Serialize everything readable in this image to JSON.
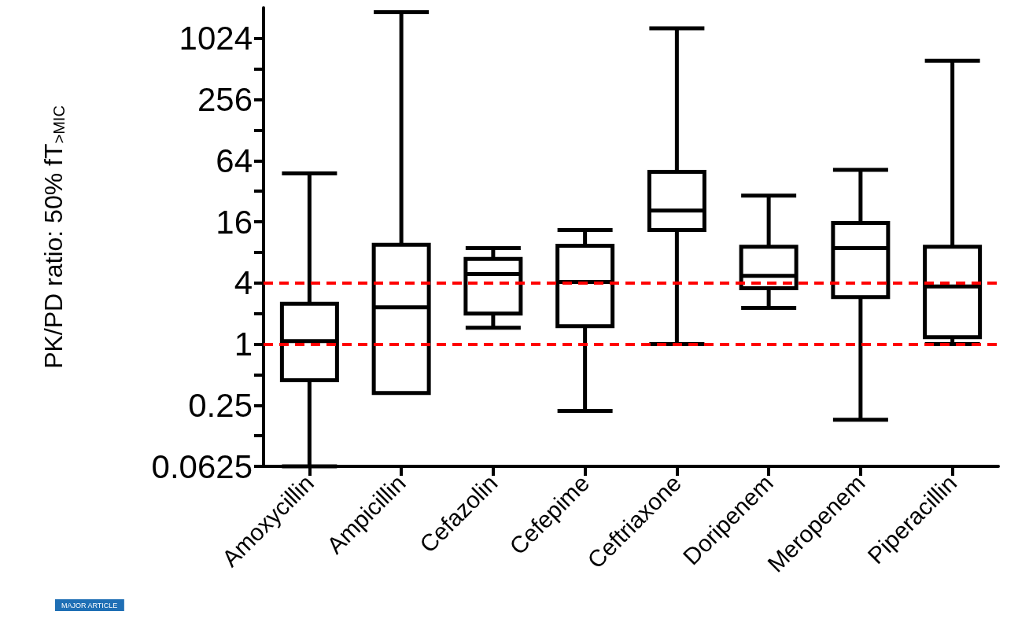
{
  "chart_data": {
    "type": "box",
    "ylabel": "PK/PD ratio: 50% fT$_{>MIC}$",
    "categories": [
      "Amoxycillin",
      "Ampicillin",
      "Cefazolin",
      "Cefepime",
      "Ceftriaxone",
      "Doripenem",
      "Meropenem",
      "Piperacillin"
    ],
    "log": "y",
    "ylim": [
      0.0625,
      2048
    ],
    "yticks": [
      0.0625,
      {
        "value": 0.125,
        "label": null
      },
      0.25,
      {
        "value": 0.5,
        "label": null
      },
      1,
      {
        "value": 2,
        "label": null
      },
      4,
      {
        "value": 8,
        "label": null
      },
      16,
      {
        "value": 32,
        "label": null
      },
      64,
      {
        "value": 128,
        "label": null
      },
      256,
      {
        "value": 512,
        "label": null
      },
      1024
    ],
    "color": "#000000",
    "boxes": [
      {
        "low": 0.0625,
        "q1": 0.44,
        "median": 1.07,
        "q3": 2.5,
        "high": 48
      },
      {
        "low": 0.33,
        "q1": 0.33,
        "median": 2.3,
        "q3": 9.5,
        "high": 1860
      },
      {
        "low": 1.45,
        "q1": 2.0,
        "median": 4.9,
        "q3": 6.9,
        "high": 8.8
      },
      {
        "low": 0.22,
        "q1": 1.5,
        "median": 4.1,
        "q3": 9.3,
        "high": 13.3
      },
      {
        "low": 1,
        "q1": 13.3,
        "median": 20.7,
        "q3": 49.7,
        "high": 1290
      },
      {
        "low": 2.27,
        "q1": 3.55,
        "median": 4.7,
        "q3": 9.1,
        "high": 29
      },
      {
        "low": 0.18,
        "q1": 2.9,
        "median": 8.8,
        "q3": 15.6,
        "high": 52
      },
      {
        "low": 1,
        "q1": 1.17,
        "median": 3.7,
        "q3": 9.1,
        "high": 617
      }
    ],
    "ref_lines": [
      {
        "axis": "y",
        "value": 4,
        "color": "#ff0000",
        "line_style": "dashed"
      },
      {
        "axis": "y",
        "value": 1,
        "color": "#ff0000",
        "line_style": "dashed"
      }
    ],
    "annotations": [
      "MAJOR ARTICLE"
    ],
    "grid": false
  }
}
